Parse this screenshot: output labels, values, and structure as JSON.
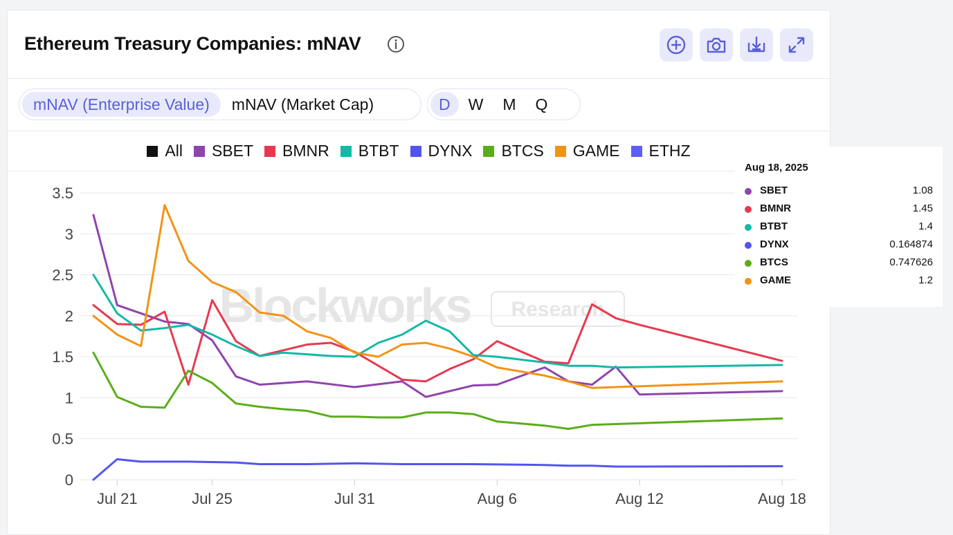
{
  "header": {
    "title": "Ethereum Treasury Companies: mNAV",
    "icons": [
      "info-icon",
      "add-circle-icon",
      "camera-icon",
      "download-icon",
      "expand-icon"
    ]
  },
  "controls": {
    "metric_tabs": [
      {
        "label": "mNAV (Enterprise Value)",
        "active": true
      },
      {
        "label": "mNAV (Market Cap)",
        "active": false
      }
    ],
    "period_tabs": [
      {
        "label": "D",
        "active": true
      },
      {
        "label": "W",
        "active": false
      },
      {
        "label": "M",
        "active": false
      },
      {
        "label": "Q",
        "active": false
      }
    ]
  },
  "legend": [
    {
      "label": "All",
      "color": "#111111"
    },
    {
      "label": "SBET",
      "color": "#8e44ad"
    },
    {
      "label": "BMNR",
      "color": "#e8384f"
    },
    {
      "label": "BTBT",
      "color": "#14b8a6"
    },
    {
      "label": "DYNX",
      "color": "#5254f0"
    },
    {
      "label": "BTCS",
      "color": "#5aad1a"
    },
    {
      "label": "GAME",
      "color": "#f39313"
    },
    {
      "label": "ETHZ",
      "color": "#5b5ff5"
    }
  ],
  "watermark": {
    "brand": "Blockworks",
    "tag": "Research"
  },
  "tooltip": {
    "date": "Aug 18, 2025",
    "rows": [
      {
        "name": "SBET",
        "value": "1.08",
        "color": "#8e44ad"
      },
      {
        "name": "BMNR",
        "value": "1.45",
        "color": "#e8384f"
      },
      {
        "name": "BTBT",
        "value": "1.4",
        "color": "#14b8a6"
      },
      {
        "name": "DYNX",
        "value": "0.164874",
        "color": "#5254f0"
      },
      {
        "name": "BTCS",
        "value": "0.747626",
        "color": "#5aad1a"
      },
      {
        "name": "GAME",
        "value": "1.2",
        "color": "#f39313"
      }
    ]
  },
  "chart_data": {
    "type": "line",
    "x": [
      "Jul 20",
      "Jul 21",
      "Jul 22",
      "Jul 23",
      "Jul 24",
      "Jul 25",
      "Jul 26",
      "Jul 27",
      "Jul 28",
      "Jul 29",
      "Jul 30",
      "Jul 31",
      "Aug 1",
      "Aug 2",
      "Aug 3",
      "Aug 4",
      "Aug 5",
      "Aug 6",
      "Aug 7",
      "Aug 8",
      "Aug 9",
      "Aug 10",
      "Aug 11",
      "Aug 12",
      "Aug 13",
      "Aug 14",
      "Aug 15",
      "Aug 16",
      "Aug 17",
      "Aug 18"
    ],
    "x_tick_labels": [
      "Jul 21",
      "Jul 25",
      "Jul 31",
      "Aug 6",
      "Aug 12",
      "Aug 18"
    ],
    "ylim": [
      0,
      3.5
    ],
    "y_ticks": [
      "0",
      "0.5",
      "1",
      "1.5",
      "2",
      "2.5",
      "3",
      "3.5"
    ],
    "grid": true,
    "legend_position": "top-center",
    "series": [
      {
        "name": "SBET",
        "color": "#8e44ad",
        "points": [
          [
            "Jul 20",
            3.23
          ],
          [
            "Jul 21",
            2.13
          ],
          [
            "Jul 22",
            2.03
          ],
          [
            "Jul 23",
            1.93
          ],
          [
            "Jul 24",
            1.9
          ],
          [
            "Jul 25",
            1.7
          ],
          [
            "Jul 26",
            1.26
          ],
          [
            "Jul 27",
            1.16
          ],
          [
            "Jul 29",
            1.2
          ],
          [
            "Jul 31",
            1.13
          ],
          [
            "Aug 2",
            1.2
          ],
          [
            "Aug 3",
            1.01
          ],
          [
            "Aug 5",
            1.15
          ],
          [
            "Aug 6",
            1.16
          ],
          [
            "Aug 8",
            1.37
          ],
          [
            "Aug 9",
            1.2
          ],
          [
            "Aug 10",
            1.16
          ],
          [
            "Aug 11",
            1.38
          ],
          [
            "Aug 12",
            1.04
          ],
          [
            "Aug 18",
            1.08
          ]
        ]
      },
      {
        "name": "BMNR",
        "color": "#e8384f",
        "points": [
          [
            "Jul 20",
            2.13
          ],
          [
            "Jul 21",
            1.9
          ],
          [
            "Jul 22",
            1.89
          ],
          [
            "Jul 23",
            2.05
          ],
          [
            "Jul 24",
            1.16
          ],
          [
            "Jul 25",
            2.19
          ],
          [
            "Jul 26",
            1.69
          ],
          [
            "Jul 27",
            1.51
          ],
          [
            "Jul 29",
            1.65
          ],
          [
            "Jul 30",
            1.67
          ],
          [
            "Jul 31",
            1.56
          ],
          [
            "Aug 2",
            1.22
          ],
          [
            "Aug 3",
            1.2
          ],
          [
            "Aug 4",
            1.35
          ],
          [
            "Aug 5",
            1.47
          ],
          [
            "Aug 6",
            1.69
          ],
          [
            "Aug 8",
            1.44
          ],
          [
            "Aug 9",
            1.42
          ],
          [
            "Aug 10",
            2.14
          ],
          [
            "Aug 11",
            1.97
          ],
          [
            "Aug 12",
            1.89
          ],
          [
            "Aug 18",
            1.45
          ]
        ]
      },
      {
        "name": "BTBT",
        "color": "#14b8a6",
        "points": [
          [
            "Jul 20",
            2.5
          ],
          [
            "Jul 21",
            2.03
          ],
          [
            "Jul 22",
            1.82
          ],
          [
            "Jul 23",
            1.85
          ],
          [
            "Jul 24",
            1.89
          ],
          [
            "Jul 25",
            1.77
          ],
          [
            "Jul 26",
            1.63
          ],
          [
            "Jul 27",
            1.51
          ],
          [
            "Jul 28",
            1.55
          ],
          [
            "Jul 30",
            1.51
          ],
          [
            "Jul 31",
            1.5
          ],
          [
            "Aug 1",
            1.67
          ],
          [
            "Aug 2",
            1.77
          ],
          [
            "Aug 3",
            1.94
          ],
          [
            "Aug 4",
            1.81
          ],
          [
            "Aug 5",
            1.52
          ],
          [
            "Aug 6",
            1.5
          ],
          [
            "Aug 8",
            1.43
          ],
          [
            "Aug 9",
            1.39
          ],
          [
            "Aug 10",
            1.39
          ],
          [
            "Aug 11",
            1.37
          ],
          [
            "Aug 18",
            1.4
          ]
        ]
      },
      {
        "name": "DYNX",
        "color": "#5254f0",
        "points": [
          [
            "Jul 20",
            0.0
          ],
          [
            "Jul 21",
            0.25
          ],
          [
            "Jul 22",
            0.22
          ],
          [
            "Jul 24",
            0.22
          ],
          [
            "Jul 26",
            0.21
          ],
          [
            "Jul 27",
            0.19
          ],
          [
            "Jul 29",
            0.19
          ],
          [
            "Jul 31",
            0.2
          ],
          [
            "Aug 2",
            0.19
          ],
          [
            "Aug 5",
            0.19
          ],
          [
            "Aug 8",
            0.18
          ],
          [
            "Aug 9",
            0.17
          ],
          [
            "Aug 10",
            0.17
          ],
          [
            "Aug 11",
            0.16
          ],
          [
            "Aug 12",
            0.16
          ],
          [
            "Aug 18",
            0.164874
          ]
        ]
      },
      {
        "name": "BTCS",
        "color": "#5aad1a",
        "points": [
          [
            "Jul 20",
            1.55
          ],
          [
            "Jul 21",
            1.01
          ],
          [
            "Jul 22",
            0.89
          ],
          [
            "Jul 23",
            0.88
          ],
          [
            "Jul 24",
            1.33
          ],
          [
            "Jul 25",
            1.18
          ],
          [
            "Jul 26",
            0.93
          ],
          [
            "Jul 27",
            0.89
          ],
          [
            "Jul 28",
            0.86
          ],
          [
            "Jul 29",
            0.84
          ],
          [
            "Jul 30",
            0.77
          ],
          [
            "Jul 31",
            0.77
          ],
          [
            "Aug 1",
            0.76
          ],
          [
            "Aug 2",
            0.76
          ],
          [
            "Aug 3",
            0.82
          ],
          [
            "Aug 4",
            0.82
          ],
          [
            "Aug 5",
            0.8
          ],
          [
            "Aug 6",
            0.71
          ],
          [
            "Aug 8",
            0.66
          ],
          [
            "Aug 9",
            0.62
          ],
          [
            "Aug 10",
            0.67
          ],
          [
            "Aug 18",
            0.747626
          ]
        ]
      },
      {
        "name": "GAME",
        "color": "#f39313",
        "points": [
          [
            "Jul 20",
            2.0
          ],
          [
            "Jul 21",
            1.77
          ],
          [
            "Jul 22",
            1.63
          ],
          [
            "Jul 23",
            3.35
          ],
          [
            "Jul 24",
            2.67
          ],
          [
            "Jul 25",
            2.41
          ],
          [
            "Jul 26",
            2.29
          ],
          [
            "Jul 27",
            2.04
          ],
          [
            "Jul 28",
            2.0
          ],
          [
            "Jul 29",
            1.81
          ],
          [
            "Jul 30",
            1.73
          ],
          [
            "Jul 31",
            1.55
          ],
          [
            "Aug 1",
            1.5
          ],
          [
            "Aug 2",
            1.65
          ],
          [
            "Aug 3",
            1.67
          ],
          [
            "Aug 4",
            1.6
          ],
          [
            "Aug 5",
            1.5
          ],
          [
            "Aug 6",
            1.37
          ],
          [
            "Aug 8",
            1.27
          ],
          [
            "Aug 9",
            1.2
          ],
          [
            "Aug 10",
            1.12
          ],
          [
            "Aug 18",
            1.2
          ]
        ]
      }
    ]
  }
}
